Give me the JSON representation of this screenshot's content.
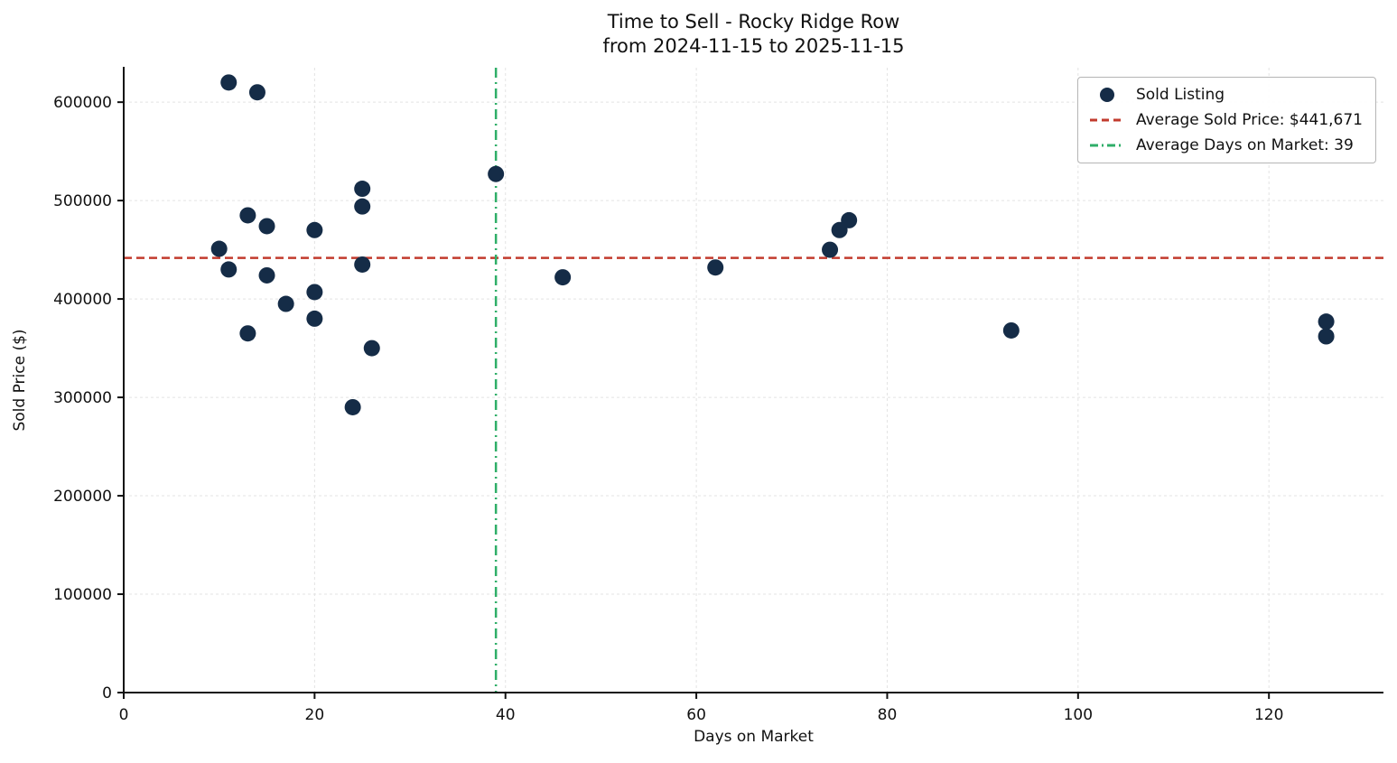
{
  "chart": {
    "title": "Time to Sell - Rocky Ridge Row",
    "subtitle": "from 2024-11-15 to 2025-11-15",
    "xlabel": "Days on Market",
    "ylabel": "Sold Price ($)"
  },
  "legend": {
    "sold_listing": "Sold Listing",
    "avg_price": "Average Sold Price: $441,671",
    "avg_days": "Average Days on Market: 39"
  },
  "chart_data": {
    "type": "scatter",
    "title": "Time to Sell - Rocky Ridge Row",
    "subtitle": "from 2024-11-15 to 2025-11-15",
    "xlabel": "Days on Market",
    "ylabel": "Sold Price ($)",
    "xlim": [
      0,
      132
    ],
    "ylim": [
      0,
      635000
    ],
    "xticks": [
      0,
      20,
      40,
      60,
      80,
      100,
      120
    ],
    "yticks": [
      0,
      100000,
      200000,
      300000,
      400000,
      500000,
      600000
    ],
    "grid": true,
    "legend_position": "upper right",
    "point_color": "#152c47",
    "series": [
      {
        "name": "Sold Listing",
        "color": "#152c47",
        "points": [
          [
            10,
            451000
          ],
          [
            11,
            620000
          ],
          [
            11,
            430000
          ],
          [
            13,
            485000
          ],
          [
            13,
            365000
          ],
          [
            14,
            610000
          ],
          [
            15,
            474000
          ],
          [
            15,
            424000
          ],
          [
            17,
            395000
          ],
          [
            20,
            470000
          ],
          [
            20,
            407000
          ],
          [
            20,
            380000
          ],
          [
            24,
            290000
          ],
          [
            25,
            512000
          ],
          [
            25,
            494000
          ],
          [
            25,
            435000
          ],
          [
            26,
            350000
          ],
          [
            39,
            527000
          ],
          [
            46,
            422000
          ],
          [
            62,
            432000
          ],
          [
            74,
            450000
          ],
          [
            75,
            470000
          ],
          [
            76,
            480000
          ],
          [
            93,
            368000
          ],
          [
            126,
            377000
          ],
          [
            126,
            362000
          ]
        ]
      }
    ],
    "reference_lines": [
      {
        "orientation": "horizontal",
        "value": 441671,
        "label": "Average Sold Price: $441,671",
        "color": "#c23b2e",
        "dash": "dashed"
      },
      {
        "orientation": "vertical",
        "value": 39,
        "label": "Average Days on Market: 39",
        "color": "#2fae68",
        "dash": "dashdot"
      }
    ]
  }
}
